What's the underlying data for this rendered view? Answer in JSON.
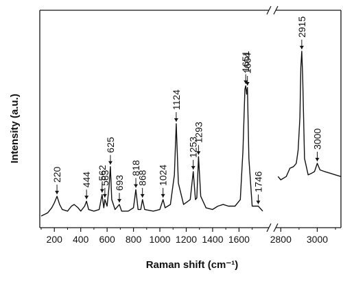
{
  "chart_data": {
    "type": "line",
    "title": "",
    "xlabel": "Raman shift (cm⁻¹)",
    "ylabel": "Intensity (a.u.)",
    "axis_break": true,
    "segments": [
      {
        "xlim": [
          100,
          1780
        ],
        "ticks": [
          "200",
          "400",
          "600",
          "800",
          "1000",
          "1200",
          "1400",
          "1600"
        ],
        "tick_values": [
          200,
          400,
          600,
          800,
          1000,
          1200,
          1400,
          1600
        ],
        "points": [
          [
            100,
            0.0
          ],
          [
            150,
            0.02
          ],
          [
            180,
            0.05
          ],
          [
            200,
            0.08
          ],
          [
            220,
            0.12
          ],
          [
            240,
            0.07
          ],
          [
            260,
            0.04
          ],
          [
            300,
            0.03
          ],
          [
            330,
            0.06
          ],
          [
            350,
            0.07
          ],
          [
            380,
            0.05
          ],
          [
            400,
            0.03
          ],
          [
            430,
            0.06
          ],
          [
            444,
            0.09
          ],
          [
            460,
            0.04
          ],
          [
            500,
            0.03
          ],
          [
            540,
            0.04
          ],
          [
            562,
            0.13
          ],
          [
            575,
            0.05
          ],
          [
            583,
            0.1
          ],
          [
            600,
            0.06
          ],
          [
            615,
            0.18
          ],
          [
            625,
            0.3
          ],
          [
            635,
            0.1
          ],
          [
            660,
            0.04
          ],
          [
            693,
            0.07
          ],
          [
            710,
            0.03
          ],
          [
            760,
            0.03
          ],
          [
            800,
            0.05
          ],
          [
            818,
            0.16
          ],
          [
            835,
            0.04
          ],
          [
            855,
            0.04
          ],
          [
            868,
            0.1
          ],
          [
            885,
            0.04
          ],
          [
            950,
            0.03
          ],
          [
            1000,
            0.04
          ],
          [
            1024,
            0.1
          ],
          [
            1040,
            0.05
          ],
          [
            1080,
            0.07
          ],
          [
            1110,
            0.25
          ],
          [
            1124,
            0.56
          ],
          [
            1140,
            0.2
          ],
          [
            1180,
            0.07
          ],
          [
            1230,
            0.1
          ],
          [
            1253,
            0.27
          ],
          [
            1270,
            0.1
          ],
          [
            1280,
            0.11
          ],
          [
            1293,
            0.36
          ],
          [
            1310,
            0.12
          ],
          [
            1350,
            0.05
          ],
          [
            1400,
            0.04
          ],
          [
            1440,
            0.06
          ],
          [
            1480,
            0.07
          ],
          [
            1520,
            0.06
          ],
          [
            1570,
            0.06
          ],
          [
            1610,
            0.1
          ],
          [
            1630,
            0.4
          ],
          [
            1645,
            0.77
          ],
          [
            1651,
            0.79
          ],
          [
            1658,
            0.74
          ],
          [
            1664,
            0.78
          ],
          [
            1675,
            0.35
          ],
          [
            1700,
            0.06
          ],
          [
            1746,
            0.06
          ],
          [
            1780,
            0.03
          ]
        ]
      },
      {
        "xlim": [
          2780,
          3130
        ],
        "ticks": [
          "2800",
          "3000"
        ],
        "tick_values": [
          2800,
          3000
        ],
        "points": [
          [
            2785,
            0.24
          ],
          [
            2800,
            0.22
          ],
          [
            2830,
            0.24
          ],
          [
            2850,
            0.29
          ],
          [
            2870,
            0.3
          ],
          [
            2885,
            0.32
          ],
          [
            2895,
            0.4
          ],
          [
            2905,
            0.6
          ],
          [
            2910,
            0.9
          ],
          [
            2915,
            1.0
          ],
          [
            2920,
            0.85
          ],
          [
            2930,
            0.35
          ],
          [
            2950,
            0.25
          ],
          [
            2970,
            0.26
          ],
          [
            2985,
            0.27
          ],
          [
            3000,
            0.32
          ],
          [
            3015,
            0.28
          ],
          [
            3040,
            0.27
          ],
          [
            3070,
            0.26
          ],
          [
            3100,
            0.25
          ],
          [
            3130,
            0.24
          ]
        ]
      }
    ],
    "peak_labels": [
      {
        "text": "220",
        "x": 220
      },
      {
        "text": "444",
        "x": 444
      },
      {
        "text": "562",
        "x": 562
      },
      {
        "text": "583",
        "x": 583
      },
      {
        "text": "625",
        "x": 625
      },
      {
        "text": "693",
        "x": 693
      },
      {
        "text": "818",
        "x": 818
      },
      {
        "text": "868",
        "x": 868
      },
      {
        "text": "1024",
        "x": 1024
      },
      {
        "text": "1124",
        "x": 1124
      },
      {
        "text": "1253",
        "x": 1253
      },
      {
        "text": "1293",
        "x": 1293
      },
      {
        "text": "1651",
        "x": 1651
      },
      {
        "text": "1664",
        "x": 1664
      },
      {
        "text": "1746",
        "x": 1746
      },
      {
        "text": "2915",
        "x": 2915
      },
      {
        "text": "3000",
        "x": 3000
      }
    ]
  },
  "colors": {
    "line": "#111111",
    "axis": "#111111"
  }
}
